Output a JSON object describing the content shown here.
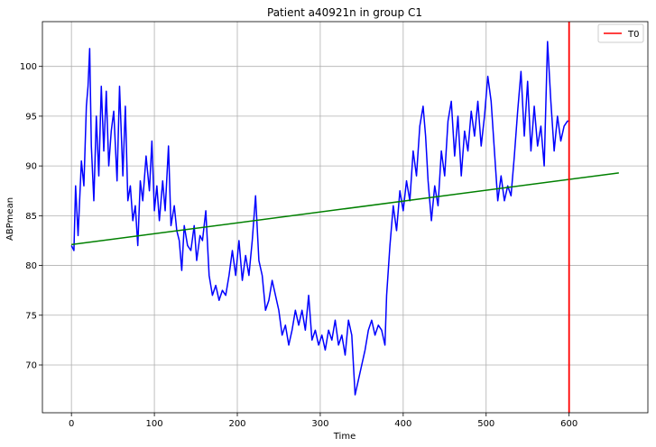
{
  "chart_data": {
    "type": "line",
    "title": "Patient a40921n in group C1",
    "xlabel": "Time",
    "ylabel": "ABPmean",
    "xlim": [
      -35,
      695
    ],
    "ylim": [
      65.2,
      104.5
    ],
    "xticks": [
      0,
      100,
      200,
      300,
      400,
      500,
      600
    ],
    "yticks": [
      70,
      75,
      80,
      85,
      90,
      95,
      100
    ],
    "grid": true,
    "legend": {
      "position": "top-right",
      "entries": [
        "T0"
      ]
    },
    "series": [
      {
        "color": "#0000ff",
        "keypoints": [
          [
            0,
            82.0
          ],
          [
            3,
            81.5
          ],
          [
            5,
            88.0
          ],
          [
            8,
            83.0
          ],
          [
            12,
            90.5
          ],
          [
            15,
            88.0
          ],
          [
            18,
            96.0
          ],
          [
            20,
            98.0
          ],
          [
            22,
            101.8
          ],
          [
            24,
            92.0
          ],
          [
            27,
            86.5
          ],
          [
            30,
            95.0
          ],
          [
            33,
            89.0
          ],
          [
            36,
            98.0
          ],
          [
            39,
            91.5
          ],
          [
            42,
            97.5
          ],
          [
            45,
            90.0
          ],
          [
            48,
            93.5
          ],
          [
            51,
            95.5
          ],
          [
            55,
            88.5
          ],
          [
            58,
            98.0
          ],
          [
            62,
            89.0
          ],
          [
            65,
            96.0
          ],
          [
            68,
            86.5
          ],
          [
            71,
            88.0
          ],
          [
            74,
            84.5
          ],
          [
            77,
            86.0
          ],
          [
            80,
            82.0
          ],
          [
            83,
            88.5
          ],
          [
            86,
            86.5
          ],
          [
            90,
            91.0
          ],
          [
            94,
            87.5
          ],
          [
            97,
            92.5
          ],
          [
            100,
            85.5
          ],
          [
            103,
            88.0
          ],
          [
            106,
            84.5
          ],
          [
            110,
            88.5
          ],
          [
            113,
            85.5
          ],
          [
            117,
            92.0
          ],
          [
            120,
            84.0
          ],
          [
            124,
            86.0
          ],
          [
            127,
            83.5
          ],
          [
            130,
            82.5
          ],
          [
            133,
            79.5
          ],
          [
            136,
            84.0
          ],
          [
            140,
            82.0
          ],
          [
            144,
            81.5
          ],
          [
            148,
            84.0
          ],
          [
            151,
            80.5
          ],
          [
            155,
            83.0
          ],
          [
            158,
            82.5
          ],
          [
            162,
            85.5
          ],
          [
            166,
            79.0
          ],
          [
            170,
            77.0
          ],
          [
            174,
            78.0
          ],
          [
            178,
            76.5
          ],
          [
            182,
            77.5
          ],
          [
            186,
            77.0
          ],
          [
            190,
            79.0
          ],
          [
            194,
            81.5
          ],
          [
            198,
            79.0
          ],
          [
            202,
            82.5
          ],
          [
            206,
            78.5
          ],
          [
            210,
            81.0
          ],
          [
            214,
            79.0
          ],
          [
            218,
            82.5
          ],
          [
            222,
            87.0
          ],
          [
            226,
            80.5
          ],
          [
            230,
            79.0
          ],
          [
            234,
            75.5
          ],
          [
            238,
            76.5
          ],
          [
            242,
            78.5
          ],
          [
            246,
            77.0
          ],
          [
            250,
            75.5
          ],
          [
            254,
            73.0
          ],
          [
            258,
            74.0
          ],
          [
            262,
            72.0
          ],
          [
            266,
            73.5
          ],
          [
            270,
            75.5
          ],
          [
            274,
            74.0
          ],
          [
            278,
            75.5
          ],
          [
            282,
            73.5
          ],
          [
            286,
            77.0
          ],
          [
            290,
            72.5
          ],
          [
            294,
            73.5
          ],
          [
            298,
            72.0
          ],
          [
            302,
            73.0
          ],
          [
            306,
            71.5
          ],
          [
            310,
            73.5
          ],
          [
            314,
            72.5
          ],
          [
            318,
            74.5
          ],
          [
            322,
            72.0
          ],
          [
            326,
            73.0
          ],
          [
            330,
            71.0
          ],
          [
            334,
            74.5
          ],
          [
            338,
            73.0
          ],
          [
            342,
            67.0
          ],
          [
            346,
            68.5
          ],
          [
            350,
            70.0
          ],
          [
            354,
            71.5
          ],
          [
            358,
            73.5
          ],
          [
            362,
            74.5
          ],
          [
            366,
            73.0
          ],
          [
            370,
            74.0
          ],
          [
            374,
            73.5
          ],
          [
            378,
            72.0
          ],
          [
            380,
            77.0
          ],
          [
            384,
            82.0
          ],
          [
            388,
            86.0
          ],
          [
            392,
            83.5
          ],
          [
            396,
            87.5
          ],
          [
            400,
            85.5
          ],
          [
            404,
            88.5
          ],
          [
            408,
            86.5
          ],
          [
            412,
            91.5
          ],
          [
            416,
            89.0
          ],
          [
            420,
            94.0
          ],
          [
            424,
            96.0
          ],
          [
            427,
            93.0
          ],
          [
            430,
            88.5
          ],
          [
            434,
            84.5
          ],
          [
            438,
            88.0
          ],
          [
            442,
            86.0
          ],
          [
            446,
            91.5
          ],
          [
            450,
            89.0
          ],
          [
            454,
            94.5
          ],
          [
            458,
            96.5
          ],
          [
            462,
            91.0
          ],
          [
            466,
            95.0
          ],
          [
            470,
            89.0
          ],
          [
            474,
            93.5
          ],
          [
            478,
            91.5
          ],
          [
            482,
            95.5
          ],
          [
            486,
            93.0
          ],
          [
            490,
            96.5
          ],
          [
            494,
            92.0
          ],
          [
            498,
            95.0
          ],
          [
            502,
            99.0
          ],
          [
            506,
            96.5
          ],
          [
            510,
            91.5
          ],
          [
            514,
            86.5
          ],
          [
            518,
            89.0
          ],
          [
            522,
            86.5
          ],
          [
            526,
            88.0
          ],
          [
            530,
            87.0
          ],
          [
            534,
            91.0
          ],
          [
            538,
            95.5
          ],
          [
            542,
            99.5
          ],
          [
            546,
            93.0
          ],
          [
            550,
            98.5
          ],
          [
            554,
            91.5
          ],
          [
            558,
            96.0
          ],
          [
            562,
            92.0
          ],
          [
            566,
            94.0
          ],
          [
            570,
            90.0
          ],
          [
            574,
            102.5
          ],
          [
            578,
            96.5
          ],
          [
            582,
            91.5
          ],
          [
            586,
            95.0
          ],
          [
            590,
            92.5
          ],
          [
            594,
            94.0
          ],
          [
            598,
            94.5
          ],
          [
            601,
            94.5
          ]
        ]
      },
      {
        "color": "#008000",
        "x": [
          0,
          660
        ],
        "values": [
          82.1,
          89.3
        ]
      },
      {
        "name": "T0",
        "color": "#ff0000",
        "vline_x": 600
      }
    ]
  }
}
